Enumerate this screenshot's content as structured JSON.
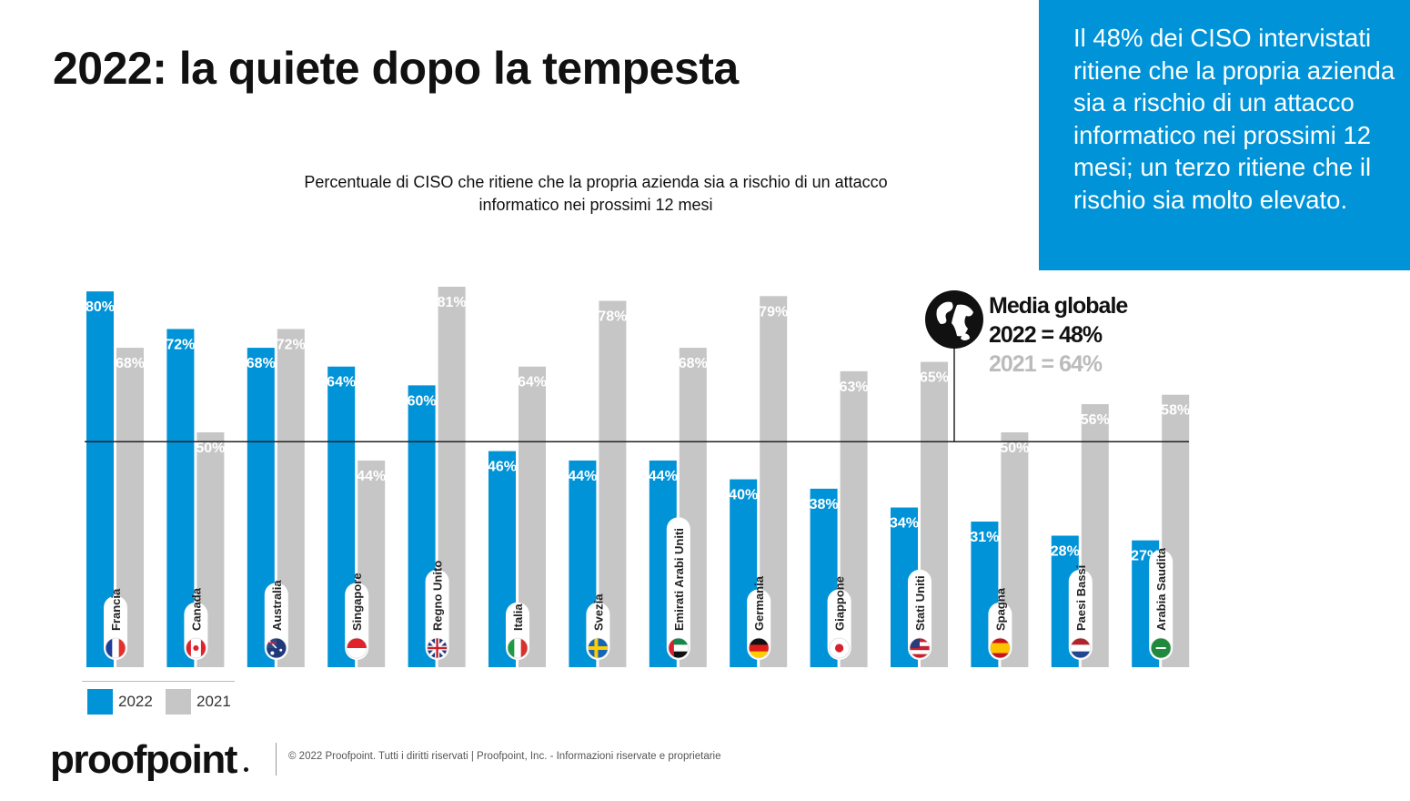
{
  "header": {
    "title": "2022: la quiete dopo la tempesta"
  },
  "callout": {
    "text": "Il 48% dei CISO intervistati ritiene che la propria azienda sia a rischio di un attacco informatico nei prossimi 12 mesi; un terzo ritiene che il rischio sia molto elevato."
  },
  "chart_data": {
    "type": "bar",
    "title": "Percentuale di CISO che ritiene che la propria azienda sia a rischio di un attacco informatico nei prossimi 12 mesi",
    "categories": [
      "Francia",
      "Canada",
      "Australia",
      "Singapore",
      "Regno Unito",
      "Italia",
      "Svezia",
      "Emirati Arabi Uniti",
      "Germania",
      "Giappone",
      "Stati Uniti",
      "Spagna",
      "Paesi Bassi",
      "Arabia Saudita"
    ],
    "series": [
      {
        "name": "2022",
        "color": "#0093d8",
        "values": [
          80,
          72,
          68,
          64,
          60,
          46,
          44,
          44,
          40,
          38,
          34,
          31,
          28,
          27
        ]
      },
      {
        "name": "2021",
        "color": "#c6c6c6",
        "values": [
          68,
          50,
          72,
          44,
          81,
          64,
          78,
          68,
          79,
          63,
          65,
          50,
          56,
          58
        ]
      }
    ],
    "value_labels": {
      "2022": [
        "80%",
        "72%",
        "68%",
        "64%",
        "60%",
        "46%",
        "44%",
        "44%",
        "40%",
        "38%",
        "34%",
        "31%",
        "28%",
        "27%"
      ],
      "2021": [
        "68%",
        "50%",
        "72%",
        "44%",
        "81%",
        "64%",
        "78%",
        "68%",
        "79%",
        "63%",
        "65%",
        "50%",
        "56%",
        "58%"
      ]
    },
    "flags": [
      "flag-france",
      "flag-canada",
      "flag-australia",
      "flag-singapore",
      "flag-uk",
      "flag-italy",
      "flag-sweden",
      "flag-uae",
      "flag-germany",
      "flag-japan",
      "flag-usa",
      "flag-spain",
      "flag-netherlands",
      "flag-saudi-arabia"
    ],
    "reference_line": {
      "value": 48
    },
    "ylim": [
      0,
      81
    ],
    "grid": false,
    "legend": "bottom-left",
    "xlabel": "",
    "ylabel": ""
  },
  "global_average": {
    "icon": "globe-icon",
    "heading": "Media globale",
    "line_2022": "2022 = 48%",
    "line_2021": "2021 = 64%"
  },
  "legend": {
    "items": [
      {
        "label": "2022",
        "color": "#0093d8"
      },
      {
        "label": "2021",
        "color": "#c6c6c6"
      }
    ]
  },
  "footer": {
    "logo": "proofpoint",
    "text": "© 2022  Proofpoint. Tutti i diritti riservati  |  Proofpoint, Inc. - Informazioni riservate e proprietarie"
  }
}
